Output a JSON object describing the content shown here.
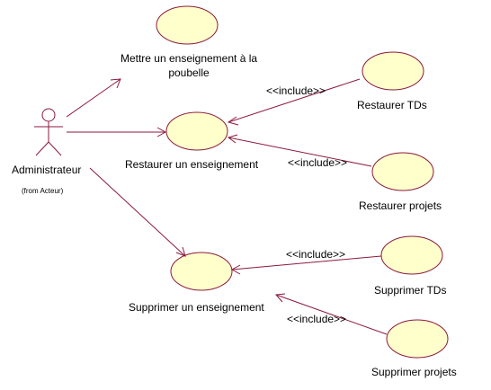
{
  "colors": {
    "line": "#8b1a3d",
    "ellipse_fill": "#ffffcc",
    "ellipse_stroke": "#8b1a3d",
    "text": "#000000"
  },
  "actor": {
    "name": "Administrateur",
    "package": "(from Acteur)"
  },
  "use_cases": {
    "poubelle": {
      "line1": "Mettre un enseignement à la",
      "line2": "poubelle"
    },
    "restaurer": {
      "label": "Restaurer un enseignement"
    },
    "restaurer_tds": {
      "label": "Restaurer TDs"
    },
    "restaurer_projets": {
      "label": "Restaurer projets"
    },
    "supprimer": {
      "label": "Supprimer un enseignement"
    },
    "supprimer_tds": {
      "label": "Supprimer TDs"
    },
    "supprimer_projets": {
      "label": "Supprimer projets"
    }
  },
  "relations": {
    "inc_restaurer_tds": "<<include>>",
    "inc_restaurer_projets": "<<include>>",
    "inc_supprimer_tds": "<<include>>",
    "inc_supprimer_projets": "<<include>>"
  }
}
